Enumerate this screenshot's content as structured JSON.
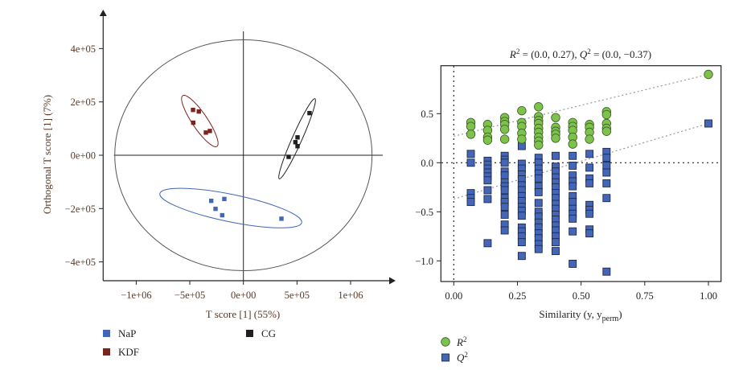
{
  "chart_data": [
    {
      "type": "scatter",
      "xlabel": "T score [1] (55%)",
      "ylabel": "Orthogonal T score [1] (7%)",
      "xlim": [
        -1350000,
        1400000
      ],
      "ylim": [
        -470000,
        540000
      ],
      "xticks": [
        -1000000,
        -500000,
        0,
        500000,
        1000000
      ],
      "xtick_labels": [
        "−1e+06",
        "−5e+05",
        "0e+00",
        "5e+05",
        "1e+06"
      ],
      "yticks": [
        -400000,
        -200000,
        0,
        200000,
        400000
      ],
      "ytick_labels": [
        "−4e+05",
        "−2e+05",
        "0e+00",
        "2e+05",
        "4e+05"
      ],
      "hotelling_ellipse": {
        "rx": 1200000,
        "ry": 433000
      },
      "legend_position": "bottom",
      "series": [
        {
          "name": "NaP",
          "color": "#4466b8",
          "points": [
            [
              -300000,
              -171000
            ],
            [
              -178000,
              -164000
            ],
            [
              -260000,
              -201000
            ],
            [
              -198000,
              -225000
            ],
            [
              355000,
              -238000
            ]
          ]
        },
        {
          "name": "KDF",
          "color": "#7a2620",
          "points": [
            [
              -470000,
              170000
            ],
            [
              -416000,
              164000
            ],
            [
              -468000,
              122000
            ],
            [
              -350000,
              85000
            ],
            [
              -313000,
              91000
            ]
          ]
        },
        {
          "name": "CG",
          "color": "#231f20",
          "points": [
            [
              617000,
              158000
            ],
            [
              505000,
              67000
            ],
            [
              485000,
              49000
            ],
            [
              505000,
              34000
            ],
            [
              422000,
              -6000
            ]
          ]
        }
      ]
    },
    {
      "type": "scatter",
      "title": "R² = (0.0, 0.27), Q² = (0.0, −0.37)",
      "title_parts": {
        "r": "R",
        "sup": "2",
        "mid": " = (0.0, 0.27), ",
        "q": "Q",
        "end": " = (0.0, −0.37)"
      },
      "xlabel": "Similarity (y, y",
      "xlabel_sub": "perm",
      "xlabel_end": ")",
      "xlim": [
        -0.05,
        1.05
      ],
      "ylim": [
        -1.2,
        0.95
      ],
      "xticks": [
        0,
        0.25,
        0.5,
        0.75,
        1.0
      ],
      "xtick_labels": [
        "0.00",
        "0.25",
        "0.50",
        "0.75",
        "1.00"
      ],
      "yticks": [
        -1.0,
        -0.5,
        0.0,
        0.5
      ],
      "ytick_labels": [
        "−1.0",
        "−0.5",
        "0.0",
        "0.5"
      ],
      "legend_position": "bottom-left",
      "regression_lines": {
        "R2": [
          [
            0,
            0.27
          ],
          [
            1,
            0.9
          ]
        ],
        "Q2": [
          [
            0,
            -0.37
          ],
          [
            1,
            0.4
          ]
        ]
      },
      "series": [
        {
          "name": "R2",
          "label": "R",
          "sup": "2",
          "marker": "circle",
          "color": "#7dc24b",
          "points": [
            [
              0.067,
              0.41
            ],
            [
              0.067,
              0.37
            ],
            [
              0.067,
              0.29
            ],
            [
              0.133,
              0.39
            ],
            [
              0.133,
              0.33
            ],
            [
              0.133,
              0.26
            ],
            [
              0.133,
              0.23
            ],
            [
              0.2,
              0.46
            ],
            [
              0.2,
              0.42
            ],
            [
              0.2,
              0.39
            ],
            [
              0.2,
              0.34
            ],
            [
              0.2,
              0.24
            ],
            [
              0.267,
              0.53
            ],
            [
              0.267,
              0.41
            ],
            [
              0.267,
              0.37
            ],
            [
              0.267,
              0.3
            ],
            [
              0.267,
              0.24
            ],
            [
              0.333,
              0.57
            ],
            [
              0.333,
              0.47
            ],
            [
              0.333,
              0.43
            ],
            [
              0.333,
              0.4
            ],
            [
              0.333,
              0.35
            ],
            [
              0.333,
              0.31
            ],
            [
              0.333,
              0.26
            ],
            [
              0.333,
              0.22
            ],
            [
              0.333,
              0.18
            ],
            [
              0.4,
              0.46
            ],
            [
              0.4,
              0.36
            ],
            [
              0.4,
              0.32
            ],
            [
              0.4,
              0.29
            ],
            [
              0.4,
              0.25
            ],
            [
              0.467,
              0.41
            ],
            [
              0.467,
              0.37
            ],
            [
              0.467,
              0.33
            ],
            [
              0.467,
              0.26
            ],
            [
              0.467,
              0.19
            ],
            [
              0.533,
              0.39
            ],
            [
              0.533,
              0.36
            ],
            [
              0.533,
              0.31
            ],
            [
              0.533,
              0.24
            ],
            [
              0.6,
              0.52
            ],
            [
              0.6,
              0.49
            ],
            [
              0.6,
              0.4
            ],
            [
              0.6,
              0.35
            ],
            [
              0.6,
              0.32
            ],
            [
              1.0,
              0.9
            ]
          ]
        },
        {
          "name": "Q2",
          "label": "Q",
          "sup": "2",
          "marker": "square",
          "color": "#4466b8",
          "points": [
            [
              0.067,
              0.09
            ],
            [
              0.067,
              0.0
            ],
            [
              0.067,
              -0.31
            ],
            [
              0.067,
              -0.36
            ],
            [
              0.067,
              -0.4
            ],
            [
              0.133,
              0.02
            ],
            [
              0.133,
              -0.02
            ],
            [
              0.133,
              -0.06
            ],
            [
              0.133,
              -0.1
            ],
            [
              0.133,
              -0.14
            ],
            [
              0.133,
              -0.18
            ],
            [
              0.133,
              -0.28
            ],
            [
              0.133,
              -0.37
            ],
            [
              0.133,
              -0.82
            ],
            [
              0.2,
              0.07
            ],
            [
              0.2,
              0.03
            ],
            [
              0.2,
              0.0
            ],
            [
              0.2,
              -0.09
            ],
            [
              0.2,
              -0.13
            ],
            [
              0.2,
              -0.2
            ],
            [
              0.2,
              -0.24
            ],
            [
              0.2,
              -0.28
            ],
            [
              0.2,
              -0.36
            ],
            [
              0.2,
              -0.4
            ],
            [
              0.2,
              -0.45
            ],
            [
              0.2,
              -0.53
            ],
            [
              0.2,
              -0.63
            ],
            [
              0.2,
              -0.69
            ],
            [
              0.267,
              0.17
            ],
            [
              0.267,
              -0.01
            ],
            [
              0.267,
              -0.06
            ],
            [
              0.267,
              -0.12
            ],
            [
              0.267,
              -0.17
            ],
            [
              0.267,
              -0.23
            ],
            [
              0.267,
              -0.28
            ],
            [
              0.267,
              -0.34
            ],
            [
              0.267,
              -0.39
            ],
            [
              0.267,
              -0.45
            ],
            [
              0.267,
              -0.49
            ],
            [
              0.267,
              -0.54
            ],
            [
              0.267,
              -0.66
            ],
            [
              0.267,
              -0.7
            ],
            [
              0.267,
              -0.75
            ],
            [
              0.267,
              -0.81
            ],
            [
              0.267,
              -0.95
            ],
            [
              0.333,
              0.05
            ],
            [
              0.333,
              0.0
            ],
            [
              0.333,
              -0.06
            ],
            [
              0.333,
              -0.11
            ],
            [
              0.333,
              -0.16
            ],
            [
              0.333,
              -0.24
            ],
            [
              0.333,
              -0.3
            ],
            [
              0.333,
              -0.41
            ],
            [
              0.333,
              -0.5
            ],
            [
              0.333,
              -0.55
            ],
            [
              0.333,
              -0.61
            ],
            [
              0.333,
              -0.66
            ],
            [
              0.333,
              -0.72
            ],
            [
              0.333,
              -0.77
            ],
            [
              0.333,
              -0.83
            ],
            [
              0.333,
              -0.88
            ],
            [
              0.4,
              0.07
            ],
            [
              0.4,
              -0.04
            ],
            [
              0.4,
              -0.09
            ],
            [
              0.4,
              -0.15
            ],
            [
              0.4,
              -0.2
            ],
            [
              0.4,
              -0.25
            ],
            [
              0.4,
              -0.31
            ],
            [
              0.4,
              -0.36
            ],
            [
              0.4,
              -0.42
            ],
            [
              0.4,
              -0.47
            ],
            [
              0.4,
              -0.53
            ],
            [
              0.4,
              -0.58
            ],
            [
              0.4,
              -0.64
            ],
            [
              0.4,
              -0.69
            ],
            [
              0.4,
              -0.75
            ],
            [
              0.4,
              -0.81
            ],
            [
              0.4,
              -0.9
            ],
            [
              0.467,
              0.07
            ],
            [
              0.467,
              -0.03
            ],
            [
              0.467,
              -0.13
            ],
            [
              0.467,
              -0.19
            ],
            [
              0.467,
              -0.24
            ],
            [
              0.467,
              -0.34
            ],
            [
              0.467,
              -0.4
            ],
            [
              0.467,
              -0.47
            ],
            [
              0.467,
              -0.52
            ],
            [
              0.467,
              -0.57
            ],
            [
              0.467,
              -0.7
            ],
            [
              0.467,
              -1.03
            ],
            [
              0.533,
              0.09
            ],
            [
              0.533,
              -0.05
            ],
            [
              0.533,
              -0.16
            ],
            [
              0.533,
              -0.21
            ],
            [
              0.533,
              -0.43
            ],
            [
              0.533,
              -0.48
            ],
            [
              0.533,
              -0.52
            ],
            [
              0.533,
              -0.68
            ],
            [
              0.533,
              -0.72
            ],
            [
              0.6,
              0.11
            ],
            [
              0.6,
              0.05
            ],
            [
              0.6,
              -0.03
            ],
            [
              0.6,
              -0.1
            ],
            [
              0.6,
              -0.21
            ],
            [
              0.6,
              -0.36
            ],
            [
              0.6,
              -1.11
            ],
            [
              1.0,
              0.4
            ]
          ]
        }
      ]
    }
  ]
}
